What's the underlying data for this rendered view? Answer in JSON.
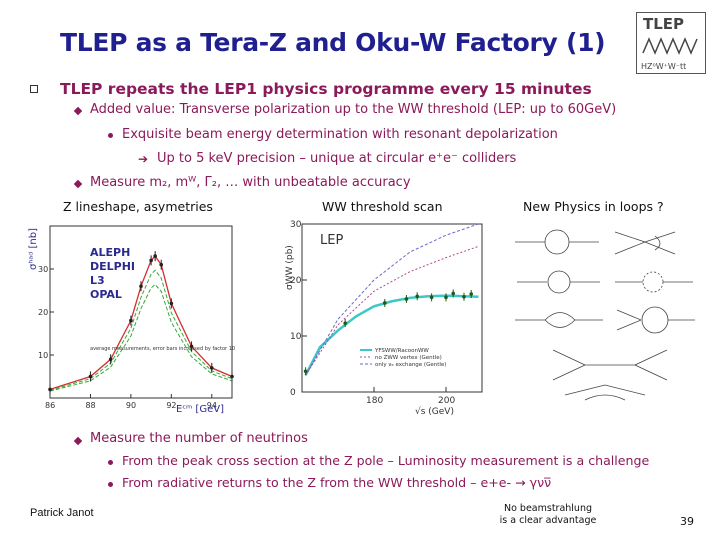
{
  "title": "TLEP as a Tera-Z and Oku-W Factory (1)",
  "logo": {
    "text": "TLEP",
    "sub": "HZ⁰W⁺W⁻tt"
  },
  "bullets": {
    "main": "TLEP repeats the LEP1 physics programme every 15 minutes",
    "b1": "Added value: Transverse polarization up to the WW threshold (LEP: up to 60GeV)",
    "b1a": "Exquisite beam energy determination with resonant depolarization",
    "b1b": "Up to 5 keV precision – unique at circular e⁺e⁻ colliders",
    "b2": "Measure m₂, mᵂ, Γ₂, … with unbeatable accuracy",
    "b3": "Measure the number of neutrinos",
    "b3a": "From the peak cross section at the Z pole – Luminosity measurement is a challenge",
    "b3b": "From radiative returns to the Z from the WW threshold – e+e- → γνν̅"
  },
  "captions": {
    "zline": "Z lineshape, asymetries",
    "ww": "WW threshold scan",
    "np": "New Physics in loops ?"
  },
  "footer": {
    "author": "Patrick Janot",
    "note_line1": "No beamstrahlung",
    "note_line2": "is a clear advantage",
    "page": "39"
  },
  "chart_data": [
    {
      "type": "line",
      "title": "",
      "xlabel": "Eᶜᵐ [GeV]",
      "ylabel": "σʰᵃᵈ [nb]",
      "xlim": [
        86,
        95
      ],
      "ylim": [
        0,
        40
      ],
      "x_ticks": [
        "86",
        "88",
        "90",
        "92",
        "94"
      ],
      "y_ticks": [
        "10",
        "20",
        "30"
      ],
      "legend": [
        "ALEPH",
        "DELPHI",
        "L3",
        "OPAL"
      ],
      "annotation": "average measurements, error bars increased by factor 10",
      "series": [
        {
          "name": "",
          "x": [
            86,
            88,
            89,
            90,
            90.5,
            91,
            91.2,
            91.5,
            92,
            93,
            94,
            95
          ],
          "values": [
            2,
            5,
            9,
            18,
            26,
            32,
            33,
            31,
            22,
            12,
            7,
            5
          ]
        }
      ]
    },
    {
      "type": "line",
      "title": "LEP",
      "xlabel": "√s (GeV)",
      "ylabel": "σWW (pb)",
      "xlim": [
        160,
        210
      ],
      "ylim": [
        0,
        30
      ],
      "x_ticks": [
        "180",
        "200"
      ],
      "y_ticks": [
        "0",
        "10",
        "20",
        "30"
      ],
      "legend": [
        "YFSWW/RacoonWW",
        "no ZWW vertex (Gentle)",
        "only νₑ exchange (Gentle)"
      ],
      "series": [
        {
          "name": "YFSWW/RacoonWW",
          "x": [
            161,
            165,
            170,
            175,
            180,
            185,
            190,
            195,
            200,
            205,
            209
          ],
          "values": [
            3,
            8,
            11,
            13.5,
            15.3,
            16.2,
            16.8,
            17.1,
            17.2,
            17.1,
            17.0
          ]
        },
        {
          "name": "no ZWW vertex (Gentle)",
          "x": [
            161,
            170,
            180,
            190,
            200,
            209
          ],
          "values": [
            3,
            12,
            18,
            21.5,
            24,
            26
          ]
        },
        {
          "name": "only νₑ exchange (Gentle)",
          "x": [
            161,
            170,
            180,
            190,
            200,
            209
          ],
          "values": [
            3,
            13,
            20,
            25,
            28,
            30
          ]
        }
      ],
      "points": {
        "x": [
          161,
          172,
          183,
          189,
          192,
          196,
          200,
          202,
          205,
          207
        ],
        "values": [
          3.7,
          12.3,
          15.9,
          16.6,
          17.1,
          16.9,
          16.9,
          17.6,
          17.0,
          17.5
        ]
      }
    }
  ]
}
